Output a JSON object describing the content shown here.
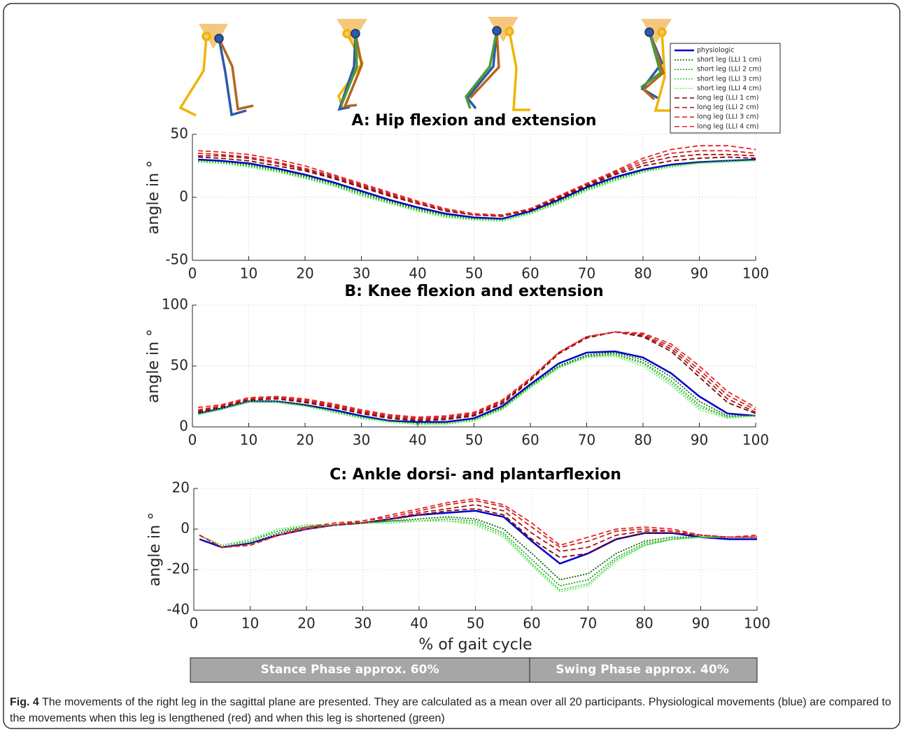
{
  "chart_data": [
    {
      "type": "line",
      "title": "A: Hip flexion and extension",
      "y_label": "angle in °",
      "legend": "top-right",
      "grid": true,
      "x": [
        1,
        5,
        10,
        15,
        20,
        25,
        30,
        35,
        40,
        45,
        50,
        55,
        60,
        65,
        70,
        75,
        80,
        85,
        90,
        95,
        100
      ],
      "xlim": [
        0,
        100
      ],
      "xticks": [
        0,
        10,
        20,
        30,
        40,
        50,
        60,
        70,
        80,
        90,
        100
      ],
      "ylim": [
        -50,
        50
      ],
      "yticks": [
        -50,
        0,
        50
      ],
      "series": [
        {
          "name": "physiologic",
          "color": "#0000cc",
          "dash": "solid",
          "values": [
            30,
            29,
            27,
            23,
            18,
            12,
            5,
            -2,
            -8,
            -13,
            -16,
            -17,
            -11,
            -2,
            8,
            16,
            22,
            26,
            28,
            29,
            30
          ]
        },
        {
          "name": "short leg (LLI 1 cm)",
          "color": "#006400",
          "dash": "dotted",
          "values": [
            29,
            28,
            26,
            22,
            17,
            11,
            4,
            -3,
            -9,
            -14,
            -17,
            -18,
            -12,
            -3,
            7,
            15,
            21,
            25,
            28,
            29,
            30
          ]
        },
        {
          "name": "short leg (LLI 2 cm)",
          "color": "#22a022",
          "dash": "dotted",
          "values": [
            29,
            28,
            25,
            21,
            16,
            10,
            3,
            -4,
            -10,
            -15,
            -17,
            -18,
            -12,
            -4,
            6,
            14,
            21,
            25,
            27,
            29,
            29
          ]
        },
        {
          "name": "short leg (LLI 3 cm)",
          "color": "#33cc33",
          "dash": "dotted",
          "values": [
            28,
            27,
            25,
            21,
            15,
            9,
            2,
            -5,
            -11,
            -15,
            -18,
            -18,
            -13,
            -4,
            6,
            14,
            20,
            25,
            27,
            28,
            29
          ]
        },
        {
          "name": "short leg (LLI 4 cm)",
          "color": "#66ee66",
          "dash": "dotted",
          "values": [
            28,
            27,
            24,
            20,
            15,
            9,
            1,
            -5,
            -11,
            -16,
            -18,
            -19,
            -13,
            -5,
            5,
            13,
            20,
            24,
            27,
            28,
            29
          ]
        },
        {
          "name": "long leg (LLI 1 cm)",
          "color": "#800000",
          "dash": "dashed",
          "values": [
            32,
            31,
            29,
            25,
            21,
            15,
            8,
            1,
            -5,
            -11,
            -14,
            -15,
            -10,
            -1,
            9,
            18,
            25,
            29,
            31,
            32,
            31
          ]
        },
        {
          "name": "long leg (LLI 2 cm)",
          "color": "#aa1111",
          "dash": "dashed",
          "values": [
            33,
            33,
            31,
            27,
            22,
            16,
            9,
            2,
            -5,
            -10,
            -14,
            -15,
            -9,
            0,
            10,
            19,
            27,
            32,
            34,
            34,
            33
          ]
        },
        {
          "name": "long leg (LLI 3 cm)",
          "color": "#cc2222",
          "dash": "dashed",
          "values": [
            35,
            34,
            32,
            28,
            23,
            17,
            10,
            3,
            -4,
            -10,
            -14,
            -14,
            -9,
            1,
            11,
            20,
            29,
            35,
            37,
            37,
            35
          ]
        },
        {
          "name": "long leg (LLI 4 cm)",
          "color": "#ee2222",
          "dash": "dashed",
          "values": [
            37,
            36,
            34,
            30,
            25,
            18,
            11,
            4,
            -3,
            -9,
            -13,
            -14,
            -9,
            1,
            11,
            21,
            31,
            38,
            41,
            41,
            38
          ]
        }
      ]
    },
    {
      "type": "line",
      "title": "B: Knee flexion and extension",
      "y_label": "angle in °",
      "grid": true,
      "x": [
        1,
        5,
        10,
        15,
        20,
        25,
        30,
        35,
        40,
        45,
        50,
        55,
        60,
        65,
        70,
        75,
        80,
        85,
        90,
        95,
        100
      ],
      "xlim": [
        0,
        100
      ],
      "xticks": [
        0,
        10,
        20,
        30,
        40,
        50,
        60,
        70,
        80,
        90,
        100
      ],
      "ylim": [
        0,
        100
      ],
      "yticks": [
        0,
        50,
        100
      ],
      "series": [
        {
          "color": "#0000cc",
          "dash": "solid",
          "values": [
            11,
            15,
            21,
            21,
            18,
            14,
            9,
            5,
            4,
            4,
            7,
            17,
            35,
            52,
            61,
            62,
            57,
            44,
            25,
            11,
            9
          ]
        },
        {
          "color": "#006400",
          "dash": "dotted",
          "values": [
            11,
            15,
            21,
            21,
            18,
            13,
            8,
            5,
            3,
            3,
            6,
            16,
            34,
            50,
            59,
            61,
            55,
            41,
            21,
            9,
            9
          ]
        },
        {
          "color": "#22a022",
          "dash": "dotted",
          "values": [
            11,
            15,
            21,
            21,
            17,
            13,
            8,
            4,
            3,
            3,
            6,
            15,
            33,
            49,
            58,
            60,
            53,
            38,
            18,
            8,
            9
          ]
        },
        {
          "color": "#33cc33",
          "dash": "dotted",
          "values": [
            10,
            14,
            21,
            20,
            17,
            12,
            7,
            4,
            2,
            3,
            5,
            15,
            33,
            49,
            58,
            59,
            52,
            36,
            16,
            8,
            9
          ]
        },
        {
          "color": "#66ee66",
          "dash": "dotted",
          "values": [
            10,
            14,
            20,
            20,
            17,
            12,
            7,
            4,
            2,
            2,
            5,
            14,
            32,
            48,
            57,
            58,
            50,
            34,
            14,
            7,
            9
          ]
        },
        {
          "color": "#800000",
          "dash": "dashed",
          "values": [
            12,
            16,
            22,
            23,
            20,
            16,
            11,
            7,
            5,
            6,
            9,
            19,
            38,
            60,
            73,
            78,
            74,
            62,
            41,
            20,
            11
          ]
        },
        {
          "color": "#aa1111",
          "dash": "dashed",
          "values": [
            13,
            17,
            23,
            24,
            21,
            17,
            12,
            8,
            6,
            7,
            10,
            20,
            39,
            61,
            74,
            78,
            75,
            64,
            44,
            23,
            12
          ]
        },
        {
          "color": "#cc2222",
          "dash": "dashed",
          "values": [
            14,
            17,
            23,
            24,
            22,
            18,
            13,
            9,
            7,
            8,
            11,
            21,
            40,
            61,
            74,
            78,
            76,
            66,
            47,
            26,
            14
          ]
        },
        {
          "color": "#ee2222",
          "dash": "dashed",
          "values": [
            16,
            18,
            24,
            25,
            23,
            19,
            14,
            10,
            8,
            9,
            12,
            22,
            40,
            61,
            74,
            78,
            77,
            68,
            50,
            29,
            16
          ]
        }
      ]
    },
    {
      "type": "line",
      "title": "C: Ankle dorsi- and plantarflexion",
      "y_label": "angle in °",
      "x_label": "% of gait cycle",
      "grid": true,
      "x": [
        1,
        5,
        10,
        15,
        20,
        25,
        30,
        35,
        40,
        45,
        50,
        55,
        60,
        65,
        70,
        75,
        80,
        85,
        90,
        95,
        100
      ],
      "xlim": [
        0,
        100
      ],
      "xticks": [
        0,
        10,
        20,
        30,
        40,
        50,
        60,
        70,
        80,
        90,
        100
      ],
      "ylim": [
        -40,
        20
      ],
      "yticks": [
        -40,
        -20,
        0,
        20
      ],
      "series": [
        {
          "color": "#0000cc",
          "dash": "solid",
          "values": [
            -5,
            -9,
            -7,
            -3,
            0,
            2,
            3,
            5,
            7,
            8,
            9,
            6,
            -6,
            -17,
            -12,
            -5,
            -2,
            -2,
            -4,
            -5,
            -5
          ]
        },
        {
          "color": "#006400",
          "dash": "dotted",
          "values": [
            -3,
            -9,
            -7,
            -2,
            1,
            2,
            3,
            4,
            5,
            6,
            5,
            0,
            -12,
            -25,
            -22,
            -12,
            -6,
            -4,
            -4,
            -4,
            -4
          ]
        },
        {
          "color": "#22a022",
          "dash": "dotted",
          "values": [
            -3,
            -8,
            -6,
            -1,
            1,
            2,
            3,
            4,
            4,
            5,
            4,
            -2,
            -15,
            -28,
            -25,
            -14,
            -7,
            -5,
            -4,
            -4,
            -4
          ]
        },
        {
          "color": "#33cc33",
          "dash": "dotted",
          "values": [
            -3,
            -8,
            -5,
            -1,
            2,
            2,
            3,
            3,
            4,
            4,
            3,
            -3,
            -17,
            -30,
            -27,
            -15,
            -8,
            -5,
            -4,
            -4,
            -4
          ]
        },
        {
          "color": "#66ee66",
          "dash": "dotted",
          "values": [
            -3,
            -8,
            -5,
            0,
            2,
            2,
            3,
            3,
            4,
            4,
            2,
            -4,
            -18,
            -31,
            -28,
            -16,
            -8,
            -5,
            -4,
            -4,
            -4
          ]
        },
        {
          "color": "#800000",
          "dash": "dashed",
          "values": [
            -3,
            -9,
            -8,
            -3,
            0,
            2,
            3,
            5,
            7,
            9,
            10,
            7,
            -5,
            -14,
            -12,
            -5,
            -2,
            -2,
            -3,
            -4,
            -4
          ]
        },
        {
          "color": "#aa1111",
          "dash": "dashed",
          "values": [
            -3,
            -9,
            -8,
            -3,
            0,
            2,
            3,
            5,
            8,
            10,
            12,
            9,
            -2,
            -11,
            -9,
            -3,
            -1,
            -1,
            -3,
            -4,
            -4
          ]
        },
        {
          "color": "#cc2222",
          "dash": "dashed",
          "values": [
            -3,
            -9,
            -8,
            -3,
            0,
            2,
            4,
            6,
            9,
            12,
            14,
            11,
            1,
            -9,
            -6,
            -1,
            0,
            -1,
            -3,
            -4,
            -4
          ]
        },
        {
          "color": "#ee2222",
          "dash": "dashed",
          "values": [
            -3,
            -9,
            -8,
            -3,
            1,
            3,
            4,
            7,
            10,
            13,
            15,
            12,
            3,
            -8,
            -4,
            0,
            1,
            0,
            -3,
            -4,
            -3
          ]
        }
      ]
    }
  ],
  "phases": [
    "Stance Phase approx. 60%",
    "Swing Phase approx. 40%"
  ],
  "caption": {
    "label": "Fig. 4",
    "text": "The movements of the right leg in the sagittal plane are presented. They are calculated as a mean over all 20 participants. Physiological movements (blue) are compared to the movements when this leg is lengthened (red) and when this leg is shortened (green)"
  }
}
